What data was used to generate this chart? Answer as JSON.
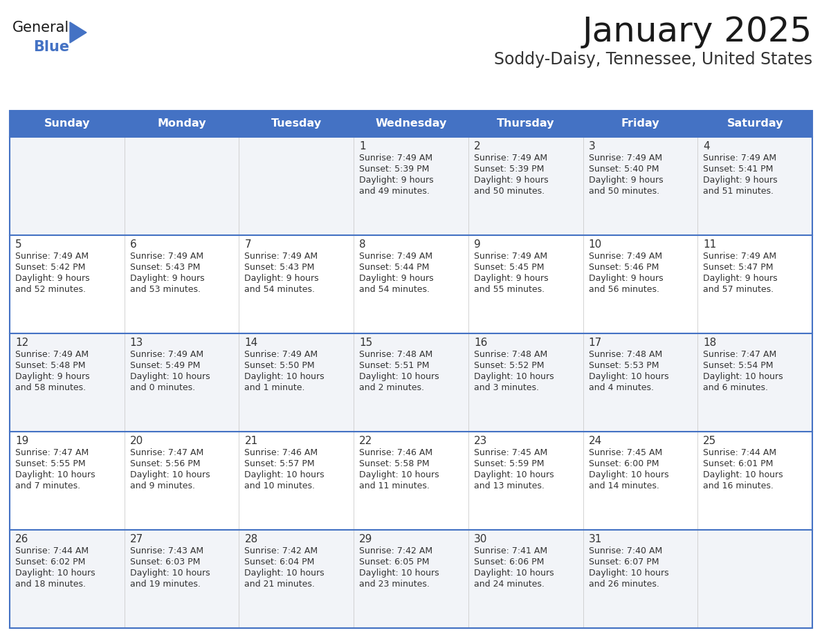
{
  "title": "January 2025",
  "subtitle": "Soddy-Daisy, Tennessee, United States",
  "header_bg_color": "#4472C4",
  "header_text_color": "#FFFFFF",
  "border_color": "#4472C4",
  "row_bg_even": "#F2F4F8",
  "row_bg_odd": "#FFFFFF",
  "text_color": "#333333",
  "day_headers": [
    "Sunday",
    "Monday",
    "Tuesday",
    "Wednesday",
    "Thursday",
    "Friday",
    "Saturday"
  ],
  "days_data": [
    {
      "day": 1,
      "col": 3,
      "row": 0,
      "sunrise": "7:49 AM",
      "sunset": "5:39 PM",
      "daylight_line1": "Daylight: 9 hours",
      "daylight_line2": "and 49 minutes."
    },
    {
      "day": 2,
      "col": 4,
      "row": 0,
      "sunrise": "7:49 AM",
      "sunset": "5:39 PM",
      "daylight_line1": "Daylight: 9 hours",
      "daylight_line2": "and 50 minutes."
    },
    {
      "day": 3,
      "col": 5,
      "row": 0,
      "sunrise": "7:49 AM",
      "sunset": "5:40 PM",
      "daylight_line1": "Daylight: 9 hours",
      "daylight_line2": "and 50 minutes."
    },
    {
      "day": 4,
      "col": 6,
      "row": 0,
      "sunrise": "7:49 AM",
      "sunset": "5:41 PM",
      "daylight_line1": "Daylight: 9 hours",
      "daylight_line2": "and 51 minutes."
    },
    {
      "day": 5,
      "col": 0,
      "row": 1,
      "sunrise": "7:49 AM",
      "sunset": "5:42 PM",
      "daylight_line1": "Daylight: 9 hours",
      "daylight_line2": "and 52 minutes."
    },
    {
      "day": 6,
      "col": 1,
      "row": 1,
      "sunrise": "7:49 AM",
      "sunset": "5:43 PM",
      "daylight_line1": "Daylight: 9 hours",
      "daylight_line2": "and 53 minutes."
    },
    {
      "day": 7,
      "col": 2,
      "row": 1,
      "sunrise": "7:49 AM",
      "sunset": "5:43 PM",
      "daylight_line1": "Daylight: 9 hours",
      "daylight_line2": "and 54 minutes."
    },
    {
      "day": 8,
      "col": 3,
      "row": 1,
      "sunrise": "7:49 AM",
      "sunset": "5:44 PM",
      "daylight_line1": "Daylight: 9 hours",
      "daylight_line2": "and 54 minutes."
    },
    {
      "day": 9,
      "col": 4,
      "row": 1,
      "sunrise": "7:49 AM",
      "sunset": "5:45 PM",
      "daylight_line1": "Daylight: 9 hours",
      "daylight_line2": "and 55 minutes."
    },
    {
      "day": 10,
      "col": 5,
      "row": 1,
      "sunrise": "7:49 AM",
      "sunset": "5:46 PM",
      "daylight_line1": "Daylight: 9 hours",
      "daylight_line2": "and 56 minutes."
    },
    {
      "day": 11,
      "col": 6,
      "row": 1,
      "sunrise": "7:49 AM",
      "sunset": "5:47 PM",
      "daylight_line1": "Daylight: 9 hours",
      "daylight_line2": "and 57 minutes."
    },
    {
      "day": 12,
      "col": 0,
      "row": 2,
      "sunrise": "7:49 AM",
      "sunset": "5:48 PM",
      "daylight_line1": "Daylight: 9 hours",
      "daylight_line2": "and 58 minutes."
    },
    {
      "day": 13,
      "col": 1,
      "row": 2,
      "sunrise": "7:49 AM",
      "sunset": "5:49 PM",
      "daylight_line1": "Daylight: 10 hours",
      "daylight_line2": "and 0 minutes."
    },
    {
      "day": 14,
      "col": 2,
      "row": 2,
      "sunrise": "7:49 AM",
      "sunset": "5:50 PM",
      "daylight_line1": "Daylight: 10 hours",
      "daylight_line2": "and 1 minute."
    },
    {
      "day": 15,
      "col": 3,
      "row": 2,
      "sunrise": "7:48 AM",
      "sunset": "5:51 PM",
      "daylight_line1": "Daylight: 10 hours",
      "daylight_line2": "and 2 minutes."
    },
    {
      "day": 16,
      "col": 4,
      "row": 2,
      "sunrise": "7:48 AM",
      "sunset": "5:52 PM",
      "daylight_line1": "Daylight: 10 hours",
      "daylight_line2": "and 3 minutes."
    },
    {
      "day": 17,
      "col": 5,
      "row": 2,
      "sunrise": "7:48 AM",
      "sunset": "5:53 PM",
      "daylight_line1": "Daylight: 10 hours",
      "daylight_line2": "and 4 minutes."
    },
    {
      "day": 18,
      "col": 6,
      "row": 2,
      "sunrise": "7:47 AM",
      "sunset": "5:54 PM",
      "daylight_line1": "Daylight: 10 hours",
      "daylight_line2": "and 6 minutes."
    },
    {
      "day": 19,
      "col": 0,
      "row": 3,
      "sunrise": "7:47 AM",
      "sunset": "5:55 PM",
      "daylight_line1": "Daylight: 10 hours",
      "daylight_line2": "and 7 minutes."
    },
    {
      "day": 20,
      "col": 1,
      "row": 3,
      "sunrise": "7:47 AM",
      "sunset": "5:56 PM",
      "daylight_line1": "Daylight: 10 hours",
      "daylight_line2": "and 9 minutes."
    },
    {
      "day": 21,
      "col": 2,
      "row": 3,
      "sunrise": "7:46 AM",
      "sunset": "5:57 PM",
      "daylight_line1": "Daylight: 10 hours",
      "daylight_line2": "and 10 minutes."
    },
    {
      "day": 22,
      "col": 3,
      "row": 3,
      "sunrise": "7:46 AM",
      "sunset": "5:58 PM",
      "daylight_line1": "Daylight: 10 hours",
      "daylight_line2": "and 11 minutes."
    },
    {
      "day": 23,
      "col": 4,
      "row": 3,
      "sunrise": "7:45 AM",
      "sunset": "5:59 PM",
      "daylight_line1": "Daylight: 10 hours",
      "daylight_line2": "and 13 minutes."
    },
    {
      "day": 24,
      "col": 5,
      "row": 3,
      "sunrise": "7:45 AM",
      "sunset": "6:00 PM",
      "daylight_line1": "Daylight: 10 hours",
      "daylight_line2": "and 14 minutes."
    },
    {
      "day": 25,
      "col": 6,
      "row": 3,
      "sunrise": "7:44 AM",
      "sunset": "6:01 PM",
      "daylight_line1": "Daylight: 10 hours",
      "daylight_line2": "and 16 minutes."
    },
    {
      "day": 26,
      "col": 0,
      "row": 4,
      "sunrise": "7:44 AM",
      "sunset": "6:02 PM",
      "daylight_line1": "Daylight: 10 hours",
      "daylight_line2": "and 18 minutes."
    },
    {
      "day": 27,
      "col": 1,
      "row": 4,
      "sunrise": "7:43 AM",
      "sunset": "6:03 PM",
      "daylight_line1": "Daylight: 10 hours",
      "daylight_line2": "and 19 minutes."
    },
    {
      "day": 28,
      "col": 2,
      "row": 4,
      "sunrise": "7:42 AM",
      "sunset": "6:04 PM",
      "daylight_line1": "Daylight: 10 hours",
      "daylight_line2": "and 21 minutes."
    },
    {
      "day": 29,
      "col": 3,
      "row": 4,
      "sunrise": "7:42 AM",
      "sunset": "6:05 PM",
      "daylight_line1": "Daylight: 10 hours",
      "daylight_line2": "and 23 minutes."
    },
    {
      "day": 30,
      "col": 4,
      "row": 4,
      "sunrise": "7:41 AM",
      "sunset": "6:06 PM",
      "daylight_line1": "Daylight: 10 hours",
      "daylight_line2": "and 24 minutes."
    },
    {
      "day": 31,
      "col": 5,
      "row": 4,
      "sunrise": "7:40 AM",
      "sunset": "6:07 PM",
      "daylight_line1": "Daylight: 10 hours",
      "daylight_line2": "and 26 minutes."
    }
  ],
  "num_rows": 5,
  "num_cols": 7,
  "fig_width": 11.88,
  "fig_height": 9.18,
  "dpi": 100
}
